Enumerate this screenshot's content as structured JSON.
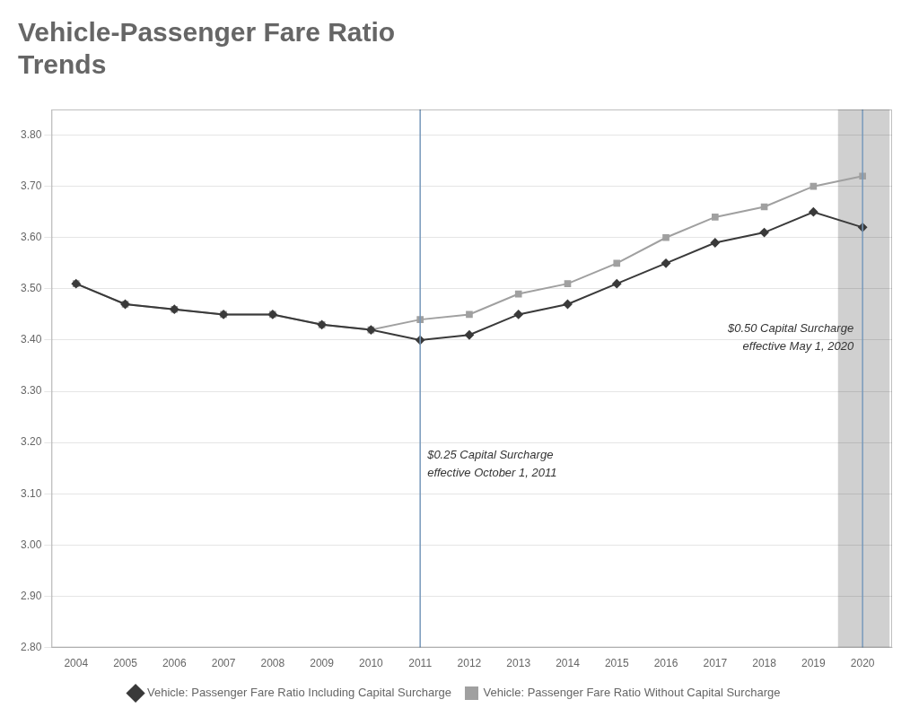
{
  "chart_data": {
    "type": "line",
    "title": [
      "Vehicle-Passenger Fare Ratio",
      "Trends"
    ],
    "x": [
      2004,
      2005,
      2006,
      2007,
      2008,
      2009,
      2010,
      2011,
      2012,
      2013,
      2014,
      2015,
      2016,
      2017,
      2018,
      2019,
      2020
    ],
    "series": [
      {
        "name": "Vehicle: Passenger Fare Ratio Including Capital Surcharge",
        "color": "#3a3a3a",
        "marker": "diamond",
        "values": [
          3.51,
          3.47,
          3.46,
          3.45,
          3.45,
          3.43,
          3.42,
          3.4,
          3.41,
          3.45,
          3.47,
          3.51,
          3.55,
          3.59,
          3.61,
          3.65,
          3.62
        ]
      },
      {
        "name": "Vehicle: Passenger Fare Ratio Without Capital Surcharge",
        "color": "#a0a0a0",
        "marker": "square",
        "values": [
          3.51,
          3.47,
          3.46,
          3.45,
          3.45,
          3.43,
          3.42,
          3.44,
          3.45,
          3.49,
          3.51,
          3.55,
          3.6,
          3.64,
          3.66,
          3.7,
          3.72
        ]
      }
    ],
    "xlim": [
      2003.5,
      2020.6
    ],
    "xticks": [
      2004,
      2005,
      2006,
      2007,
      2008,
      2009,
      2010,
      2011,
      2012,
      2013,
      2014,
      2015,
      2016,
      2017,
      2018,
      2019,
      2020
    ],
    "ylim": [
      2.8,
      3.85
    ],
    "yticks": [
      {
        "value": 2.8,
        "label": "2.80"
      },
      {
        "value": 2.9,
        "label": "2.90"
      },
      {
        "value": 3.0,
        "label": "3.00"
      },
      {
        "value": 3.1,
        "label": "3.10"
      },
      {
        "value": 3.2,
        "label": "3.20"
      },
      {
        "value": 3.3,
        "label": "3.30"
      },
      {
        "value": 3.4,
        "label": "3.40"
      },
      {
        "value": 3.5,
        "label": "3.50"
      },
      {
        "value": 3.6,
        "label": "3.60"
      },
      {
        "value": 3.7,
        "label": "3.70"
      },
      {
        "value": 3.8,
        "label": "3.80"
      }
    ],
    "grid": true,
    "legend": "bottom",
    "annotations": [
      {
        "text": [
          "$0.25 Capital Surcharge",
          "effective October 1, 2011"
        ],
        "x": 2011,
        "color": "#7799bb"
      },
      {
        "text": [
          "$0.50 Capital Surcharge",
          "effective May 1, 2020"
        ],
        "x": 2020,
        "color": "#7799bb"
      }
    ],
    "shade": {
      "x": [
        2019.5,
        2020.55
      ],
      "color": "#d0d0d0"
    }
  }
}
